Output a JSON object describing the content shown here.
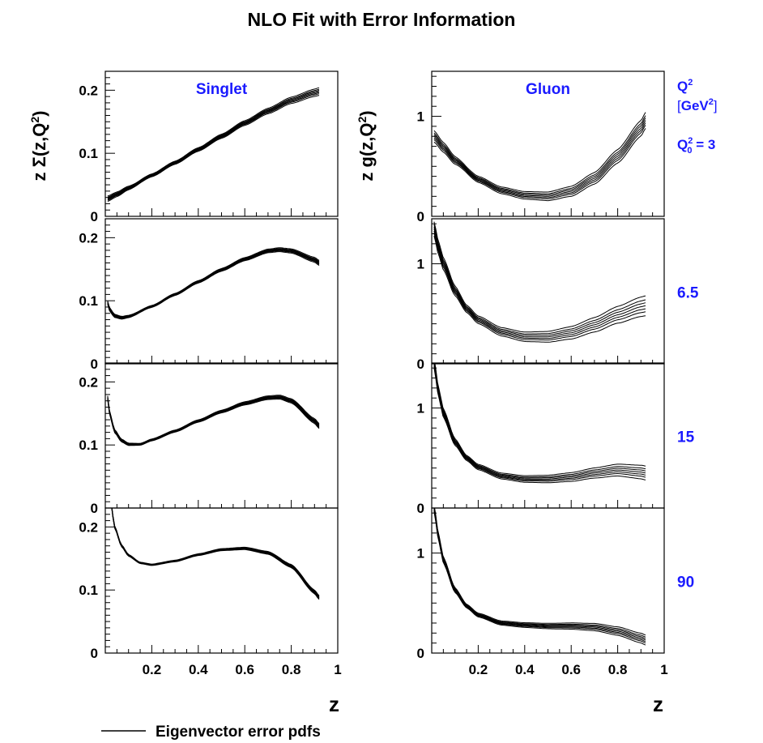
{
  "figure": {
    "title": "NLO Fit with Error Information",
    "legend_label": "Eigenvector error pdfs",
    "q2_header": "Q",
    "q2_header_sup": "2",
    "q2_unit_open": "[",
    "q2_unit": "GeV",
    "q2_unit_sup": "2",
    "q2_unit_close": "]",
    "q0_label_q": "Q",
    "q0_label_sup": "2",
    "q0_label_sub": "0",
    "q0_label_eq": " = 3",
    "x_axis_label": "z",
    "left_ylabel": "z Σ(z,Q",
    "left_ylabel_sup": "2",
    "left_ylabel_close": ")",
    "right_ylabel": "z g(z,Q",
    "right_ylabel_sup": "2",
    "right_ylabel_close": ")",
    "colors": {
      "accent": "#1a1aff",
      "ink": "#000000"
    }
  },
  "chart_data": [
    {
      "type": "line",
      "column": "left",
      "row": 0,
      "panel_label": "Singlet",
      "q2": "",
      "ylim": [
        0,
        0.23
      ],
      "xlim": [
        0,
        1
      ],
      "yticks": [
        0,
        0.1,
        0.2
      ],
      "ytick_labels": [
        "0",
        "0.1",
        "0.2"
      ],
      "xticks": [],
      "xtick_labels": [],
      "x": [
        0.01,
        0.05,
        0.1,
        0.2,
        0.3,
        0.4,
        0.5,
        0.6,
        0.7,
        0.8,
        0.9,
        0.92
      ],
      "series": [
        {
          "values": [
            0.028,
            0.035,
            0.045,
            0.065,
            0.085,
            0.106,
            0.127,
            0.148,
            0.167,
            0.184,
            0.196,
            0.198
          ]
        }
      ],
      "band_spread": 0.006
    },
    {
      "type": "line",
      "column": "right",
      "row": 0,
      "panel_label": "Gluon",
      "q2": "",
      "ylim": [
        0,
        1.45
      ],
      "xlim": [
        0,
        1
      ],
      "yticks": [
        0,
        1
      ],
      "ytick_labels": [
        "0",
        "1"
      ],
      "xticks": [],
      "xtick_labels": [],
      "x": [
        0.01,
        0.05,
        0.1,
        0.2,
        0.3,
        0.4,
        0.5,
        0.6,
        0.7,
        0.8,
        0.9,
        0.92
      ],
      "series": [
        {
          "values": [
            0.8,
            0.69,
            0.56,
            0.37,
            0.26,
            0.21,
            0.2,
            0.25,
            0.38,
            0.6,
            0.88,
            0.96
          ]
        }
      ],
      "band_spread": 0.08
    },
    {
      "type": "line",
      "column": "left",
      "row": 1,
      "panel_label": "",
      "q2": "6.5",
      "ylim": [
        0,
        0.23
      ],
      "xlim": [
        0,
        1
      ],
      "yticks": [
        0,
        0.1,
        0.2
      ],
      "ytick_labels": [
        "0",
        "0.1",
        "0.2"
      ],
      "xticks": [],
      "xtick_labels": [],
      "x": [
        0.01,
        0.02,
        0.04,
        0.07,
        0.1,
        0.2,
        0.3,
        0.4,
        0.5,
        0.6,
        0.7,
        0.75,
        0.8,
        0.9,
        0.92
      ],
      "series": [
        {
          "values": [
            0.097,
            0.085,
            0.076,
            0.073,
            0.075,
            0.091,
            0.11,
            0.13,
            0.149,
            0.166,
            0.179,
            0.181,
            0.179,
            0.165,
            0.16
          ]
        }
      ],
      "band_spread": 0.004
    },
    {
      "type": "line",
      "column": "right",
      "row": 1,
      "panel_label": "",
      "q2": "6.5",
      "ylim": [
        0,
        1.45
      ],
      "xlim": [
        0,
        1
      ],
      "yticks": [
        0,
        1
      ],
      "ytick_labels": [
        "0",
        "1"
      ],
      "xticks": [],
      "xtick_labels": [],
      "x": [
        0.01,
        0.03,
        0.05,
        0.1,
        0.15,
        0.2,
        0.3,
        0.4,
        0.5,
        0.6,
        0.7,
        0.8,
        0.9,
        0.92
      ],
      "series": [
        {
          "values": [
            1.35,
            1.15,
            1.0,
            0.73,
            0.55,
            0.44,
            0.32,
            0.27,
            0.27,
            0.31,
            0.39,
            0.49,
            0.57,
            0.58
          ]
        }
      ],
      "band_spread": 0.1
    },
    {
      "type": "line",
      "column": "left",
      "row": 2,
      "panel_label": "",
      "q2": "15",
      "ylim": [
        0,
        0.23
      ],
      "xlim": [
        0,
        1
      ],
      "yticks": [
        0,
        0.1,
        0.2
      ],
      "ytick_labels": [
        "0",
        "0.1",
        "0.2"
      ],
      "xticks": [],
      "xtick_labels": [],
      "x": [
        0.01,
        0.02,
        0.04,
        0.07,
        0.1,
        0.15,
        0.2,
        0.3,
        0.4,
        0.5,
        0.6,
        0.7,
        0.75,
        0.8,
        0.9,
        0.92
      ],
      "series": [
        {
          "values": [
            0.175,
            0.148,
            0.122,
            0.107,
            0.101,
            0.101,
            0.108,
            0.122,
            0.138,
            0.153,
            0.166,
            0.175,
            0.176,
            0.17,
            0.138,
            0.13
          ]
        }
      ],
      "band_spread": 0.004
    },
    {
      "type": "line",
      "column": "right",
      "row": 2,
      "panel_label": "",
      "q2": "15",
      "ylim": [
        0,
        1.45
      ],
      "xlim": [
        0,
        1
      ],
      "yticks": [
        0,
        1
      ],
      "ytick_labels": [
        "0",
        "1"
      ],
      "xticks": [],
      "xtick_labels": [],
      "x": [
        0.01,
        0.03,
        0.05,
        0.1,
        0.15,
        0.2,
        0.3,
        0.4,
        0.5,
        0.6,
        0.7,
        0.8,
        0.9,
        0.92
      ],
      "series": [
        {
          "values": [
            1.45,
            1.15,
            0.95,
            0.66,
            0.5,
            0.41,
            0.32,
            0.29,
            0.29,
            0.31,
            0.35,
            0.38,
            0.36,
            0.35
          ]
        }
      ],
      "band_spread": 0.07
    },
    {
      "type": "line",
      "column": "left",
      "row": 3,
      "panel_label": "",
      "q2": "90",
      "ylim": [
        0,
        0.23
      ],
      "xlim": [
        0,
        1
      ],
      "yticks": [
        0,
        0.1,
        0.2
      ],
      "ytick_labels": [
        "0",
        "0.1",
        "0.2"
      ],
      "xticks": [
        0.2,
        0.4,
        0.6,
        0.8,
        1
      ],
      "xtick_labels": [
        "0.2",
        "0.4",
        "0.6",
        "0.8",
        "1"
      ],
      "x": [
        0.01,
        0.02,
        0.04,
        0.07,
        0.1,
        0.15,
        0.2,
        0.3,
        0.4,
        0.5,
        0.6,
        0.7,
        0.8,
        0.9,
        0.92
      ],
      "series": [
        {
          "values": [
            0.3,
            0.25,
            0.2,
            0.17,
            0.155,
            0.143,
            0.14,
            0.146,
            0.156,
            0.164,
            0.166,
            0.159,
            0.138,
            0.097,
            0.088
          ]
        }
      ],
      "band_spread": 0.003
    },
    {
      "type": "line",
      "column": "right",
      "row": 3,
      "panel_label": "",
      "q2": "90",
      "ylim": [
        0,
        1.45
      ],
      "xlim": [
        0,
        1
      ],
      "yticks": [
        0,
        1
      ],
      "ytick_labels": [
        "0",
        "1"
      ],
      "xticks": [
        0.2,
        0.4,
        0.6,
        0.8,
        1
      ],
      "xtick_labels": [
        "0.2",
        "0.4",
        "0.6",
        "0.8",
        "1"
      ],
      "x": [
        0.01,
        0.03,
        0.05,
        0.1,
        0.15,
        0.2,
        0.3,
        0.4,
        0.5,
        0.6,
        0.7,
        0.8,
        0.9,
        0.92
      ],
      "series": [
        {
          "values": [
            1.45,
            1.15,
            0.93,
            0.63,
            0.47,
            0.38,
            0.3,
            0.28,
            0.27,
            0.27,
            0.26,
            0.22,
            0.15,
            0.13
          ]
        }
      ],
      "band_spread": 0.05
    }
  ]
}
